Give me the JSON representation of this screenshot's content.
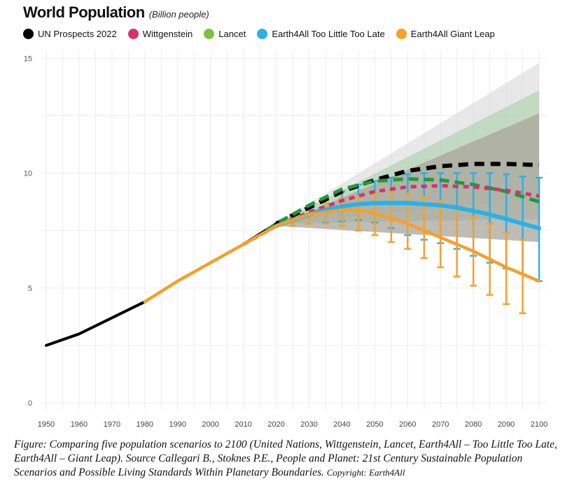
{
  "chart_data": {
    "type": "line",
    "title": "World Population",
    "subtitle": "(Billion people)",
    "x_ticks": [
      1950,
      1960,
      1970,
      1980,
      1990,
      2000,
      2010,
      2020,
      2030,
      2040,
      2050,
      2060,
      2070,
      2080,
      2090,
      2100
    ],
    "y_ticks": [
      0,
      5,
      10,
      15
    ],
    "xlim": [
      1948,
      2102
    ],
    "ylim": [
      0,
      15.2
    ],
    "grid": true,
    "legend_placement": "top",
    "series": [
      {
        "name": "UN Prospects 2022",
        "color": "#000000",
        "style": "solid-historical-then-dashed",
        "x": [
          1950,
          1960,
          1970,
          1980,
          1990,
          2000,
          2010,
          2020,
          2030,
          2040,
          2050,
          2060,
          2070,
          2080,
          2090,
          2100
        ],
        "y": [
          2.5,
          3.0,
          3.7,
          4.4,
          5.3,
          6.1,
          6.9,
          7.8,
          8.5,
          9.2,
          9.7,
          10.1,
          10.3,
          10.4,
          10.4,
          10.35
        ],
        "band": {
          "x": [
            2020,
            2100
          ],
          "lo": [
            7.8,
            8.9
          ],
          "hi": [
            7.8,
            14.8
          ],
          "color": "#d9d9d9"
        }
      },
      {
        "name": "Wittgenstein",
        "color": "#d6336c",
        "style": "dotted",
        "x": [
          2010,
          2020,
          2030,
          2040,
          2050,
          2060,
          2070,
          2080,
          2090,
          2100
        ],
        "y": [
          6.9,
          7.7,
          8.3,
          8.8,
          9.2,
          9.4,
          9.45,
          9.4,
          9.25,
          9.0
        ],
        "band": {
          "x": [
            2020,
            2100
          ],
          "lo": [
            7.7,
            7.0
          ],
          "hi": [
            7.7,
            12.6
          ],
          "color": "#a9a49c"
        }
      },
      {
        "name": "Lancet",
        "color": "#1f9a3a",
        "legend_color": "#7cc242",
        "style": "dashed",
        "x": [
          2017,
          2020,
          2030,
          2040,
          2050,
          2060,
          2070,
          2080,
          2090,
          2100
        ],
        "y": [
          7.5,
          7.8,
          8.6,
          9.3,
          9.65,
          9.75,
          9.7,
          9.5,
          9.2,
          8.75
        ],
        "band": {
          "x": [
            2020,
            2100
          ],
          "lo": [
            7.8,
            8.0
          ],
          "hi": [
            7.8,
            13.6
          ],
          "color": "#a8cfa8"
        }
      },
      {
        "name": "Earth4All Too Little Too Late",
        "color": "#29b1e8",
        "style": "solid",
        "x": [
          2020,
          2025,
          2030,
          2035,
          2040,
          2045,
          2050,
          2055,
          2060,
          2065,
          2070,
          2075,
          2080,
          2085,
          2090,
          2095,
          2100
        ],
        "y": [
          7.7,
          7.95,
          8.2,
          8.4,
          8.55,
          8.65,
          8.7,
          8.7,
          8.7,
          8.65,
          8.6,
          8.5,
          8.35,
          8.2,
          8.0,
          7.8,
          7.6
        ],
        "error_bars": {
          "x": [
            2025,
            2030,
            2035,
            2040,
            2045,
            2050,
            2055,
            2060,
            2065,
            2070,
            2075,
            2080,
            2085,
            2090,
            2095,
            2100
          ],
          "lo": [
            7.7,
            7.8,
            7.85,
            7.9,
            7.95,
            7.85,
            7.6,
            7.3,
            7.1,
            6.95,
            6.7,
            6.4,
            6.1,
            5.85,
            5.6,
            5.3
          ],
          "hi": [
            8.2,
            8.5,
            8.9,
            9.2,
            9.5,
            9.65,
            9.8,
            9.95,
            10.0,
            10.0,
            10.0,
            10.0,
            10.0,
            9.95,
            9.85,
            9.8
          ]
        }
      },
      {
        "name": "Earth4All Giant Leap",
        "color": "#f5a02a",
        "style": "solid",
        "x": [
          1980,
          1990,
          2000,
          2010,
          2020,
          2030,
          2040,
          2045,
          2050,
          2060,
          2070,
          2080,
          2090,
          2100
        ],
        "y": [
          4.4,
          5.3,
          6.1,
          6.9,
          7.7,
          8.2,
          8.4,
          8.4,
          8.25,
          7.8,
          7.2,
          6.6,
          5.9,
          5.3
        ],
        "error_bars": {
          "x": [
            2025,
            2030,
            2035,
            2040,
            2045,
            2050,
            2055,
            2060,
            2065,
            2070,
            2075,
            2080,
            2085,
            2090,
            2095
          ],
          "lo": [
            7.7,
            7.8,
            7.8,
            7.7,
            7.5,
            7.3,
            7.0,
            6.7,
            6.3,
            5.9,
            5.5,
            5.1,
            4.7,
            4.3,
            3.9
          ],
          "hi": [
            8.1,
            8.4,
            8.7,
            8.9,
            9.0,
            9.1,
            9.2,
            9.1,
            9.0,
            8.8,
            8.5,
            8.1,
            7.8,
            7.4,
            7.1
          ]
        }
      }
    ]
  },
  "caption": {
    "main": "Figure: Comparing five population scenarios to 2100 (United Nations, Wittgenstein, Lancet, Earth4All – Too Little Too Late, Earth4All – Giant Leap). Source Callegari B., Stoknes P.E., People and Planet: 21st Century Sustainable Population Scenarios and Possible Living Standards Within Planetary Boundaries.",
    "copyright": "Copyright: Earth4All"
  }
}
